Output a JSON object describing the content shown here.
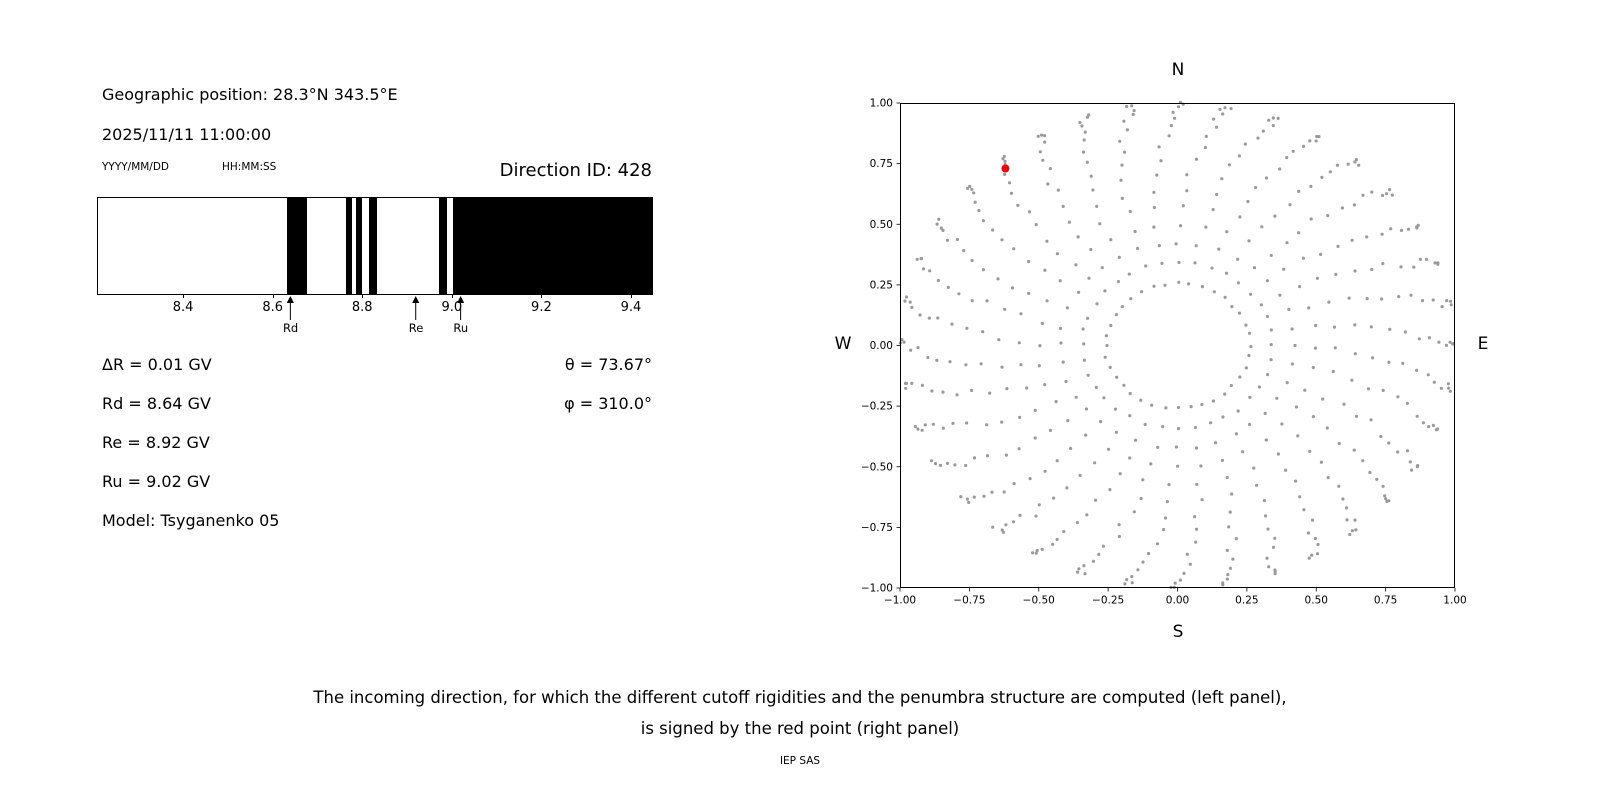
{
  "left_panel": {
    "geographic_position": "Geographic position: 28.3°N 343.5°E",
    "datetime": "2025/11/11 11:00:00",
    "date_format": "YYYY/MM/DD",
    "time_format": "HH:MM:SS",
    "delta_r": "ΔR = 0.01 GV",
    "rd": "Rd = 8.64 GV",
    "re": "Re = 8.92 GV",
    "ru": "Ru = 9.02 GV",
    "model": "Model: Tsyganenko 05",
    "theta": "θ = 73.67°",
    "phi": "φ = 310.0°"
  },
  "caption": {
    "line1": "The incoming direction, for which the different cutoff rigidities and the penumbra structure are computed (left panel),",
    "line2": "is signed by the red point (right panel)"
  },
  "footer": "IEP SAS",
  "chart_data": [
    {
      "type": "bar",
      "name": "penumbra-structure",
      "title": "Direction ID: 428",
      "xlabel": "",
      "ylabel": "",
      "xlim": [
        8.21,
        9.447
      ],
      "xticks": [
        8.4,
        8.6,
        8.8,
        9.0,
        9.2,
        9.4
      ],
      "xtick_format_decimals": 1,
      "allowed_color": "#ffffff",
      "band_color": "#000000",
      "forbidden_bands_gv": [
        [
          8.632,
          8.677
        ],
        [
          8.764,
          8.777
        ],
        [
          8.786,
          8.8
        ],
        [
          8.815,
          8.833
        ],
        [
          8.971,
          8.989
        ],
        [
          9.003,
          9.447
        ]
      ],
      "markers": [
        {
          "label": "Rd",
          "value_gv": 8.64
        },
        {
          "label": "Re",
          "value_gv": 8.92
        },
        {
          "label": "Ru",
          "value_gv": 9.02
        }
      ]
    },
    {
      "type": "scatter",
      "name": "incoming-direction-map",
      "xlim": [
        -1,
        1
      ],
      "ylim": [
        -1,
        1
      ],
      "xticks": [
        -1.0,
        -0.75,
        -0.5,
        -0.25,
        0.0,
        0.25,
        0.5,
        0.75,
        1.0
      ],
      "yticks": [
        -1.0,
        -0.75,
        -0.5,
        -0.25,
        0.0,
        0.25,
        0.5,
        0.75,
        1.0
      ],
      "tick_format_decimals": 2,
      "axis_labels": {
        "top": "N",
        "bottom": "S",
        "left": "W",
        "right": "E"
      },
      "grid": false,
      "dot_color": "#9a9a9a",
      "dot_radius_px": 1.6,
      "spokes": {
        "azimuth_start_deg": 0,
        "azimuth_step_deg": 10,
        "azimuth_count": 36,
        "zenith_deg": [
          15,
          20,
          25,
          30,
          35,
          40,
          45,
          50,
          55,
          60,
          65,
          70,
          75,
          80,
          85,
          90
        ],
        "radius_rule": "sin(zenith)",
        "curl_deg_at_edge": 10.5,
        "jitter_az_deg": 1.2,
        "jitter_r": 0.006
      },
      "red_point": {
        "x": -0.62,
        "y": 0.73,
        "color": "#e8000b",
        "radius_px": 4
      }
    }
  ]
}
